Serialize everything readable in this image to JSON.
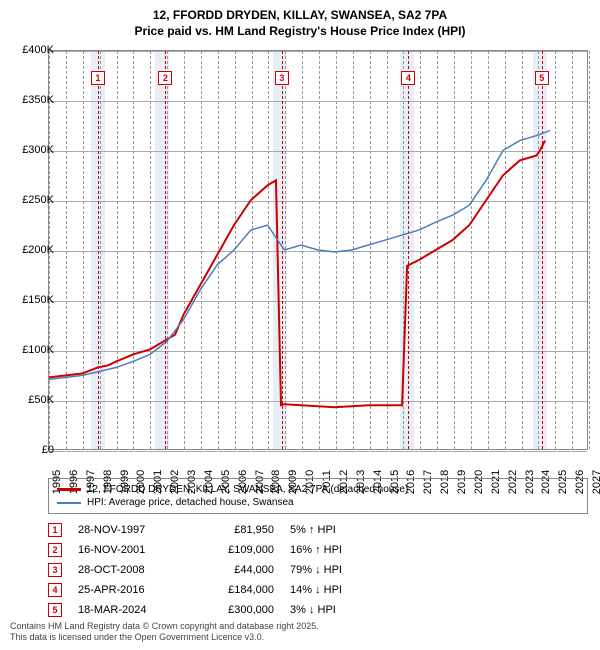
{
  "title": "12, FFORDD DRYDEN, KILLAY, SWANSEA, SA2 7PA",
  "subtitle": "Price paid vs. HM Land Registry's House Price Index (HPI)",
  "chart": {
    "type": "line",
    "background_color": "#ffffff",
    "grid_color": "#aaaaaa",
    "xlim": [
      1995,
      2027
    ],
    "ylim": [
      0,
      400000
    ],
    "ytick_step": 50000,
    "yticks": [
      "£0",
      "£50K",
      "£100K",
      "£150K",
      "£200K",
      "£250K",
      "£300K",
      "£350K",
      "£400K"
    ],
    "xticks": [
      1995,
      1996,
      1997,
      1998,
      1999,
      2000,
      2001,
      2002,
      2003,
      2004,
      2005,
      2006,
      2007,
      2008,
      2009,
      2010,
      2011,
      2012,
      2013,
      2014,
      2015,
      2016,
      2017,
      2018,
      2019,
      2020,
      2021,
      2022,
      2023,
      2024,
      2025,
      2026,
      2027
    ],
    "bands": [
      {
        "start": 1997.5,
        "end": 1998.3,
        "color": "#e8eef7"
      },
      {
        "start": 2001.3,
        "end": 2002.1,
        "color": "#e8eef7"
      },
      {
        "start": 2008.3,
        "end": 2009.1,
        "color": "#e8eef7"
      },
      {
        "start": 2015.8,
        "end": 2016.6,
        "color": "#e8eef7"
      },
      {
        "start": 2023.7,
        "end": 2024.5,
        "color": "#e8eef7"
      }
    ],
    "markers": [
      {
        "id": "1",
        "year": 1997.9
      },
      {
        "id": "2",
        "year": 2001.9
      },
      {
        "id": "3",
        "year": 2008.8
      },
      {
        "id": "4",
        "year": 2016.3
      },
      {
        "id": "5",
        "year": 2024.2
      }
    ],
    "series": [
      {
        "name": "12, FFORDD DRYDEN, KILLAY, SWANSEA, SA2 7PA (detached house)",
        "color": "#cc0000",
        "width": 2,
        "points": [
          [
            1995,
            72000
          ],
          [
            1996,
            74000
          ],
          [
            1997,
            76000
          ],
          [
            1997.9,
            81950
          ],
          [
            1998.5,
            84000
          ],
          [
            1999,
            88000
          ],
          [
            2000,
            95000
          ],
          [
            2001,
            100000
          ],
          [
            2001.9,
            109000
          ],
          [
            2002.5,
            115000
          ],
          [
            2003,
            135000
          ],
          [
            2004,
            165000
          ],
          [
            2005,
            195000
          ],
          [
            2006,
            225000
          ],
          [
            2007,
            250000
          ],
          [
            2008,
            265000
          ],
          [
            2008.5,
            270000
          ],
          [
            2008.8,
            44000
          ],
          [
            2009,
            45000
          ],
          [
            2010,
            44000
          ],
          [
            2011,
            43000
          ],
          [
            2012,
            42000
          ],
          [
            2013,
            43000
          ],
          [
            2014,
            44000
          ],
          [
            2015,
            44000
          ],
          [
            2016,
            44000
          ],
          [
            2016.3,
            184000
          ],
          [
            2017,
            190000
          ],
          [
            2018,
            200000
          ],
          [
            2019,
            210000
          ],
          [
            2020,
            225000
          ],
          [
            2021,
            250000
          ],
          [
            2022,
            275000
          ],
          [
            2023,
            290000
          ],
          [
            2024,
            295000
          ],
          [
            2024.2,
            300000
          ],
          [
            2024.5,
            310000
          ]
        ]
      },
      {
        "name": "HPI: Average price, detached house, Swansea",
        "color": "#4a7ebb",
        "width": 1.5,
        "points": [
          [
            1995,
            70000
          ],
          [
            1996,
            72000
          ],
          [
            1997,
            74000
          ],
          [
            1998,
            78000
          ],
          [
            1999,
            82000
          ],
          [
            2000,
            88000
          ],
          [
            2001,
            95000
          ],
          [
            2002,
            108000
          ],
          [
            2003,
            130000
          ],
          [
            2004,
            160000
          ],
          [
            2005,
            185000
          ],
          [
            2006,
            200000
          ],
          [
            2007,
            220000
          ],
          [
            2008,
            225000
          ],
          [
            2009,
            200000
          ],
          [
            2010,
            205000
          ],
          [
            2011,
            200000
          ],
          [
            2012,
            198000
          ],
          [
            2013,
            200000
          ],
          [
            2014,
            205000
          ],
          [
            2015,
            210000
          ],
          [
            2016,
            215000
          ],
          [
            2017,
            220000
          ],
          [
            2018,
            228000
          ],
          [
            2019,
            235000
          ],
          [
            2020,
            245000
          ],
          [
            2021,
            270000
          ],
          [
            2022,
            300000
          ],
          [
            2023,
            310000
          ],
          [
            2024,
            315000
          ],
          [
            2024.8,
            320000
          ]
        ]
      }
    ]
  },
  "legend": {
    "items": [
      {
        "color": "#cc0000",
        "label": "12, FFORDD DRYDEN, KILLAY, SWANSEA, SA2 7PA (detached house)"
      },
      {
        "color": "#4a7ebb",
        "label": "HPI: Average price, detached house, Swansea"
      }
    ]
  },
  "transactions": [
    {
      "id": "1",
      "date": "28-NOV-1997",
      "price": "£81,950",
      "pct": "5% ↑ HPI"
    },
    {
      "id": "2",
      "date": "16-NOV-2001",
      "price": "£109,000",
      "pct": "16% ↑ HPI"
    },
    {
      "id": "3",
      "date": "28-OCT-2008",
      "price": "£44,000",
      "pct": "79% ↓ HPI"
    },
    {
      "id": "4",
      "date": "25-APR-2016",
      "price": "£184,000",
      "pct": "14% ↓ HPI"
    },
    {
      "id": "5",
      "date": "18-MAR-2024",
      "price": "£300,000",
      "pct": "3% ↓ HPI"
    }
  ],
  "footer": {
    "line1": "Contains HM Land Registry data © Crown copyright and database right 2025.",
    "line2": "This data is licensed under the Open Government Licence v3.0."
  }
}
